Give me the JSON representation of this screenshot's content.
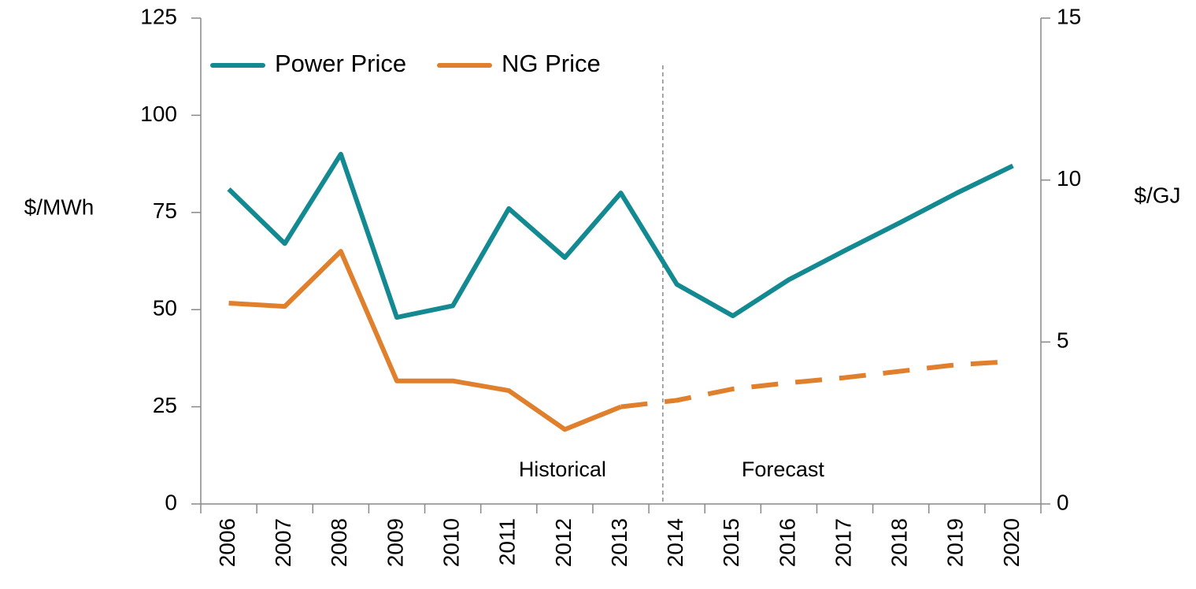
{
  "chart_data": {
    "type": "line",
    "categories": [
      "2006",
      "2007",
      "2008",
      "2009",
      "2010",
      "2011",
      "2012",
      "2013",
      "2014",
      "2015",
      "2016",
      "2017",
      "2018",
      "2019",
      "2020"
    ],
    "series": [
      {
        "name": "Power Price",
        "color": "#138a92",
        "values": [
          81,
          67,
          90,
          48,
          51,
          76,
          63.4,
          80,
          56.5,
          48.4,
          57.7,
          65.2,
          72.5,
          80,
          87
        ]
      },
      {
        "name": "NG Price",
        "color": "#e07f2c",
        "axis": "y2",
        "dashed_from": 7,
        "values": [
          6.2,
          6.1,
          7.8,
          3.8,
          3.8,
          3.5,
          2.3,
          3.0,
          3.2,
          3.55,
          3.74,
          3.9,
          4.1,
          4.3,
          4.4
        ]
      }
    ],
    "ylabel": "$/MWh",
    "y2label": "$/GJ",
    "ylim": [
      0,
      125
    ],
    "yticks": [
      0,
      25,
      50,
      75,
      100,
      125
    ],
    "y2lim": [
      0,
      15
    ],
    "y2ticks": [
      0,
      5,
      10,
      15
    ],
    "annotations": [
      "Historical",
      "Forecast"
    ],
    "legend": "top-left",
    "grid": false
  }
}
